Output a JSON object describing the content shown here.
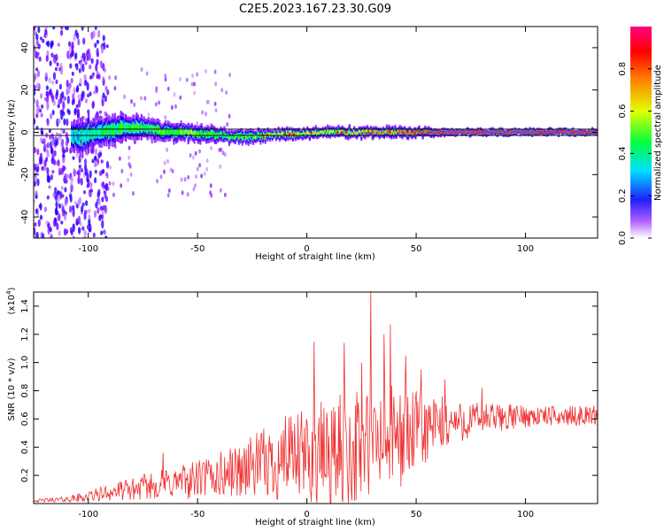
{
  "title": "C2E5.2023.167.23.30.G09",
  "chart_data": [
    {
      "type": "heatmap",
      "xlabel": "Height of straight line (km)",
      "ylabel": "Frequency (Hz)",
      "xlim": [
        -125,
        133
      ],
      "ylim": [
        -50,
        50
      ],
      "x_ticks": [
        -100,
        -50,
        0,
        50,
        100
      ],
      "y_ticks": [
        -40,
        -20,
        0,
        20,
        40
      ],
      "colorbar": {
        "label": "Normalized spectral amplitude",
        "range": [
          0,
          1
        ],
        "ticks": [
          "0.0",
          "0.2",
          "0.4",
          "0.6",
          "0.8"
        ],
        "colors": [
          "#ffffff",
          "#7a00ff",
          "#0000ff",
          "#00ffff",
          "#00ff00",
          "#ffff00",
          "#ff8000",
          "#ff0000",
          "#ff0080"
        ]
      },
      "centerline": {
        "x": [
          -125,
          133
        ],
        "y": [
          0,
          0
        ],
        "color": "#000000"
      },
      "band": {
        "x": [
          -105,
          -95,
          -85,
          -75,
          -65,
          -55,
          -45,
          -35,
          -25,
          -15,
          -5,
          5,
          15,
          25,
          35,
          45,
          55,
          65,
          75,
          85,
          95,
          105,
          115,
          125,
          133
        ],
        "center_hz": [
          -2,
          0,
          2,
          2,
          0,
          0,
          -1,
          -2,
          -2,
          -1,
          -1,
          0,
          0,
          0,
          0,
          0,
          0,
          0,
          0,
          0,
          0,
          0,
          0,
          0,
          0
        ],
        "halfwidth_hz": [
          8,
          7,
          6,
          5,
          4,
          4,
          3.5,
          3,
          3,
          2.5,
          2.5,
          2.5,
          2.5,
          2.5,
          2.5,
          2.5,
          2,
          1.5,
          1.5,
          1.5,
          1.5,
          1.5,
          1.5,
          1.5,
          1.5
        ],
        "peak_amplitude": [
          0.35,
          0.45,
          0.5,
          0.5,
          0.5,
          0.55,
          0.5,
          0.5,
          0.55,
          0.6,
          0.6,
          0.6,
          0.6,
          0.65,
          0.7,
          0.75,
          0.85,
          0.95,
          0.95,
          0.95,
          0.95,
          0.95,
          0.95,
          0.95,
          0.95
        ]
      },
      "noise_region": {
        "x_range": [
          -125,
          -95
        ],
        "y_range": [
          -50,
          50
        ],
        "amplitude": 0.2
      }
    },
    {
      "type": "line",
      "xlabel": "Height of straight line (km)",
      "ylabel": "SNR (10 * v/v)",
      "y_multiplier": "(x10",
      "y_multiplier_exp": "4",
      "y_multiplier_close": ")",
      "xlim": [
        -125,
        133
      ],
      "ylim": [
        0,
        1.5
      ],
      "x_ticks": [
        -100,
        -50,
        0,
        50,
        100
      ],
      "y_ticks": [
        0.2,
        0.4,
        0.6,
        0.8,
        1.0,
        1.2,
        1.4
      ],
      "color": "#ef3232",
      "envelope": {
        "x": [
          -125,
          -110,
          -100,
          -90,
          -80,
          -70,
          -60,
          -50,
          -40,
          -30,
          -20,
          -10,
          0,
          10,
          20,
          30,
          40,
          50,
          60,
          70,
          80,
          90,
          100,
          110,
          120,
          133
        ],
        "base": [
          0.02,
          0.03,
          0.05,
          0.08,
          0.1,
          0.13,
          0.15,
          0.17,
          0.2,
          0.24,
          0.28,
          0.3,
          0.33,
          0.35,
          0.38,
          0.42,
          0.46,
          0.5,
          0.55,
          0.58,
          0.6,
          0.61,
          0.62,
          0.62,
          0.62,
          0.63
        ],
        "amplitude": [
          0.01,
          0.02,
          0.04,
          0.06,
          0.08,
          0.1,
          0.12,
          0.14,
          0.17,
          0.2,
          0.25,
          0.3,
          0.35,
          0.4,
          0.42,
          0.42,
          0.38,
          0.3,
          0.22,
          0.15,
          0.12,
          0.1,
          0.08,
          0.07,
          0.07,
          0.07
        ]
      },
      "spikes": [
        {
          "x": -66,
          "y": 0.36
        },
        {
          "x": -27,
          "y": 0.42
        },
        {
          "x": -10,
          "y": 0.62
        },
        {
          "x": 3,
          "y": 1.15
        },
        {
          "x": 17,
          "y": 1.14
        },
        {
          "x": 25,
          "y": 1.0
        },
        {
          "x": 29,
          "y": 1.51
        },
        {
          "x": 35,
          "y": 1.2
        },
        {
          "x": 38,
          "y": 1.27
        },
        {
          "x": 45,
          "y": 1.05
        },
        {
          "x": 52,
          "y": 0.95
        },
        {
          "x": 63,
          "y": 0.88
        },
        {
          "x": 80,
          "y": 0.82
        }
      ]
    }
  ]
}
